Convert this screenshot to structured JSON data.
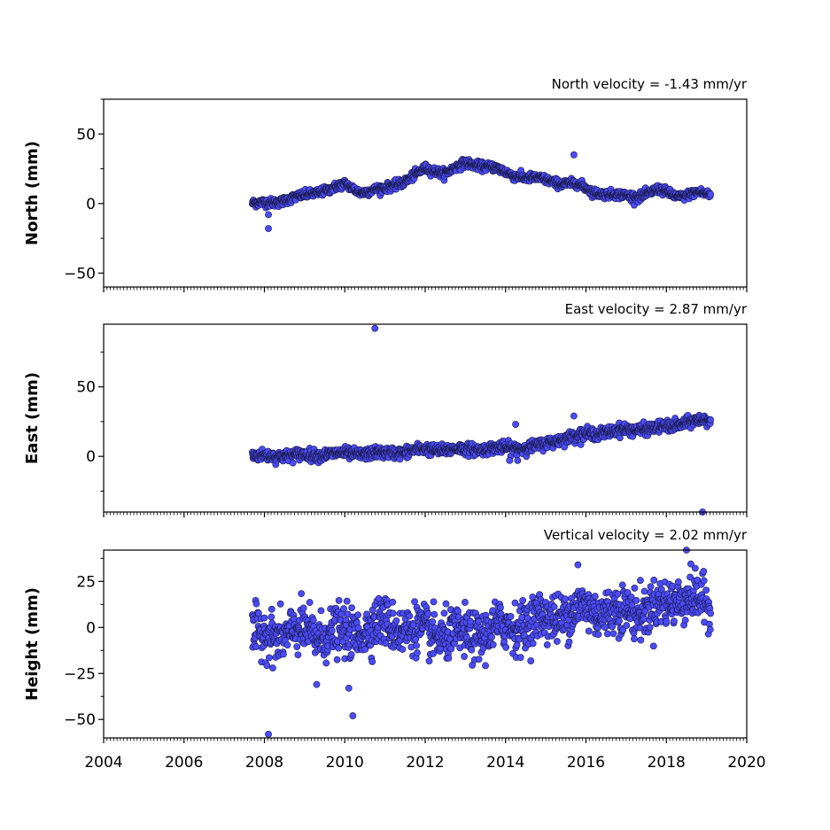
{
  "chart_data": [
    {
      "type": "scatter",
      "id": "north",
      "ylabel": "North (mm)",
      "annotation": "North velocity = -1.43 mm/yr",
      "xlim": [
        2004,
        2020
      ],
      "ylim": [
        -60,
        75
      ],
      "yticks": [
        -50,
        0,
        50
      ],
      "ytick_labels": [
        "−50",
        "0",
        "50"
      ],
      "marker_color": "#4b4bff",
      "marker_edge": "#1a1a40",
      "trend": [
        [
          2007.7,
          0
        ],
        [
          2008.3,
          1
        ],
        [
          2009.0,
          6
        ],
        [
          2009.6,
          10
        ],
        [
          2010.0,
          14
        ],
        [
          2010.4,
          8
        ],
        [
          2011.0,
          11
        ],
        [
          2011.5,
          16
        ],
        [
          2012.0,
          25
        ],
        [
          2012.5,
          22
        ],
        [
          2013.0,
          29
        ],
        [
          2013.7,
          26
        ],
        [
          2014.2,
          20
        ],
        [
          2014.8,
          18
        ],
        [
          2015.3,
          15
        ],
        [
          2015.8,
          14
        ],
        [
          2016.2,
          8
        ],
        [
          2016.8,
          6
        ],
        [
          2017.3,
          5
        ],
        [
          2017.8,
          10
        ],
        [
          2018.3,
          5
        ],
        [
          2018.8,
          8
        ],
        [
          2019.1,
          6
        ]
      ],
      "scatter_sd": 1.5,
      "outliers": [
        [
          2008.1,
          -18
        ],
        [
          2008.1,
          -8
        ],
        [
          2015.7,
          35
        ]
      ]
    },
    {
      "type": "scatter",
      "id": "east",
      "ylabel": "East (mm)",
      "annotation": "East velocity = 2.87 mm/yr",
      "xlim": [
        2004,
        2020
      ],
      "ylim": [
        -40,
        95
      ],
      "yticks": [
        0,
        50
      ],
      "ytick_labels": [
        "0",
        "50"
      ],
      "marker_color": "#4b4bff",
      "marker_edge": "#1a1a40",
      "trend": [
        [
          2007.7,
          0
        ],
        [
          2009.0,
          1
        ],
        [
          2010.0,
          2
        ],
        [
          2011.0,
          2
        ],
        [
          2012.0,
          5
        ],
        [
          2013.0,
          5
        ],
        [
          2014.0,
          6
        ],
        [
          2014.8,
          7
        ],
        [
          2015.3,
          12
        ],
        [
          2016.0,
          16
        ],
        [
          2017.0,
          19
        ],
        [
          2018.0,
          21
        ],
        [
          2018.6,
          25
        ],
        [
          2019.1,
          26
        ]
      ],
      "scatter_sd": 2.0,
      "outliers": [
        [
          2010.75,
          92
        ],
        [
          2014.25,
          23
        ],
        [
          2015.7,
          29
        ],
        [
          2014.1,
          -3
        ],
        [
          2014.3,
          -3
        ],
        [
          2018.9,
          -40
        ]
      ]
    },
    {
      "type": "scatter",
      "id": "height",
      "ylabel": "Height (mm)",
      "annotation": "Vertical velocity = 2.02 mm/yr",
      "xlim": [
        2004,
        2020
      ],
      "ylim": [
        -60,
        42
      ],
      "yticks": [
        -50,
        -25,
        0,
        25
      ],
      "ytick_labels": [
        "−50",
        "−25",
        "0",
        "25"
      ],
      "marker_color": "#4b4bff",
      "marker_edge": "#1a1a40",
      "trend": [
        [
          2007.7,
          -5
        ],
        [
          2009.0,
          -3
        ],
        [
          2010.0,
          -4
        ],
        [
          2011.0,
          2
        ],
        [
          2012.0,
          -3
        ],
        [
          2013.0,
          -5
        ],
        [
          2014.0,
          0
        ],
        [
          2015.0,
          5
        ],
        [
          2016.0,
          10
        ],
        [
          2017.0,
          8
        ],
        [
          2018.0,
          12
        ],
        [
          2018.5,
          18
        ],
        [
          2019.1,
          10
        ]
      ],
      "scatter_sd": 6.5,
      "outliers": [
        [
          2008.1,
          -58
        ],
        [
          2009.3,
          -31
        ],
        [
          2010.1,
          -33
        ],
        [
          2010.2,
          -48
        ],
        [
          2018.5,
          42
        ],
        [
          2015.8,
          34
        ]
      ]
    }
  ],
  "x_axis": {
    "ticks": [
      2004,
      2006,
      2008,
      2010,
      2012,
      2014,
      2016,
      2018,
      2020
    ],
    "tick_labels": [
      "2004",
      "2006",
      "2008",
      "2010",
      "2012",
      "2014",
      "2016",
      "2018",
      "2020"
    ]
  }
}
